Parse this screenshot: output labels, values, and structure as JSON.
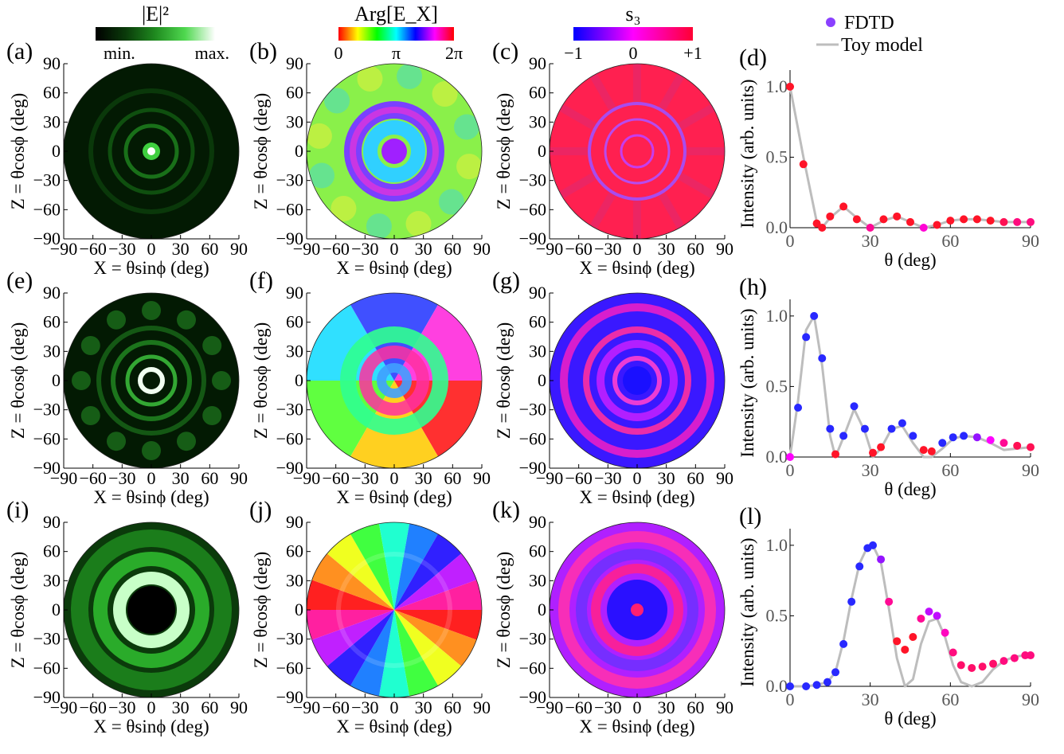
{
  "colorbars": [
    {
      "id": "intensity",
      "title": "|E|²",
      "tick_labels": [
        "min.",
        "max."
      ],
      "colors": [
        "#000000",
        "#0a3a0a",
        "#1f8a1f",
        "#4fd84f",
        "#ffffff"
      ]
    },
    {
      "id": "phase",
      "title": "Arg[E_X]",
      "tick_labels": [
        "0",
        "π",
        "2π"
      ],
      "colors": [
        "#ff0000",
        "#ffff00",
        "#00ff00",
        "#00ffff",
        "#0000ff",
        "#ff00ff",
        "#ff0000"
      ]
    },
    {
      "id": "s3",
      "title": "s₃",
      "tick_labels": [
        "−1",
        "0",
        "+1"
      ],
      "colors": [
        "#0000ff",
        "#ff00ff",
        "#ff0033"
      ]
    }
  ],
  "map_axes": {
    "xlabel": "X = θsinϕ (deg)",
    "ylabel": "Z = θcosϕ (deg)",
    "ticks": [
      -90,
      -60,
      -30,
      0,
      30,
      60,
      90
    ],
    "tick_labels": [
      "−90",
      "−60",
      "−30",
      "0",
      "30",
      "60",
      "90"
    ]
  },
  "panels": [
    {
      "label": "(a)",
      "kind": "intensity"
    },
    {
      "label": "(b)",
      "kind": "phase"
    },
    {
      "label": "(c)",
      "kind": "s3"
    },
    {
      "label": "(e)",
      "kind": "intensity"
    },
    {
      "label": "(f)",
      "kind": "phase"
    },
    {
      "label": "(g)",
      "kind": "s3"
    },
    {
      "label": "(i)",
      "kind": "intensity"
    },
    {
      "label": "(j)",
      "kind": "phase"
    },
    {
      "label": "(k)",
      "kind": "s3"
    }
  ],
  "chart_data": [
    {
      "type": "line",
      "label": "(d)",
      "xlabel": "θ (deg)",
      "ylabel": "Intensity (arb. units)",
      "xlim": [
        0,
        90
      ],
      "ylim": [
        0,
        1.05
      ],
      "xticks": [
        0,
        30,
        60,
        90
      ],
      "yticks": [
        0.0,
        0.5,
        1.0
      ],
      "ytick_labels": [
        "0.0",
        "0.5",
        "1.0"
      ],
      "series": [
        {
          "name": "FDTD",
          "style": "scatter",
          "x": [
            0,
            5,
            10,
            12,
            15,
            20,
            25,
            30,
            35,
            40,
            45,
            50,
            55,
            60,
            65,
            70,
            75,
            80,
            85,
            90
          ],
          "y": [
            1.0,
            0.45,
            0.03,
            0.0,
            0.08,
            0.15,
            0.06,
            0.0,
            0.06,
            0.08,
            0.04,
            0.0,
            0.02,
            0.05,
            0.06,
            0.06,
            0.05,
            0.04,
            0.04,
            0.04
          ],
          "s3": [
            1,
            1,
            1,
            1,
            1,
            1,
            1,
            0.5,
            1,
            1,
            1,
            0.2,
            1,
            1,
            1,
            1,
            1,
            0.8,
            0.6,
            0.6
          ]
        },
        {
          "name": "Toy model",
          "style": "line",
          "x": [
            0,
            5,
            10,
            12,
            15,
            20,
            25,
            30,
            35,
            40,
            45,
            50,
            55,
            60,
            65,
            70,
            75,
            80,
            85,
            90
          ],
          "y": [
            1.0,
            0.5,
            0.04,
            0.0,
            0.07,
            0.15,
            0.07,
            0.0,
            0.05,
            0.08,
            0.04,
            0.0,
            0.02,
            0.05,
            0.06,
            0.06,
            0.05,
            0.04,
            0.04,
            0.04
          ]
        }
      ]
    },
    {
      "type": "line",
      "label": "(h)",
      "xlabel": "θ (deg)",
      "ylabel": "Intensity (arb. units)",
      "xlim": [
        0,
        90
      ],
      "ylim": [
        0,
        1.05
      ],
      "xticks": [
        0,
        30,
        60,
        90
      ],
      "yticks": [
        0.0,
        0.5,
        1.0
      ],
      "ytick_labels": [
        "0.0",
        "0.5",
        "1.0"
      ],
      "series": [
        {
          "name": "FDTD",
          "style": "scatter",
          "x": [
            0,
            3,
            6,
            9,
            12,
            15,
            17,
            20,
            24,
            28,
            31,
            34,
            38,
            42,
            46,
            50,
            53,
            57,
            61,
            65,
            70,
            75,
            80,
            85,
            90
          ],
          "y": [
            0.0,
            0.35,
            0.85,
            1.0,
            0.7,
            0.2,
            0.02,
            0.15,
            0.36,
            0.2,
            0.03,
            0.07,
            0.2,
            0.24,
            0.15,
            0.05,
            0.04,
            0.1,
            0.14,
            0.15,
            0.14,
            0.12,
            0.1,
            0.08,
            0.07
          ],
          "s3": [
            0,
            -1,
            -1,
            -1,
            -1,
            -1,
            1,
            -1,
            -1,
            -1,
            1,
            1,
            -1,
            -1,
            -1,
            1,
            1,
            -1,
            -1,
            -1,
            -0.5,
            0,
            0.5,
            0.8,
            0.8
          ]
        },
        {
          "name": "Toy model",
          "style": "line",
          "x": [
            0,
            3,
            6,
            9,
            12,
            15,
            17,
            20,
            24,
            28,
            31,
            34,
            38,
            42,
            46,
            50,
            53,
            57,
            61,
            65,
            70,
            75,
            80,
            85,
            90
          ],
          "y": [
            0.0,
            0.4,
            0.9,
            1.0,
            0.65,
            0.15,
            0.0,
            0.14,
            0.34,
            0.18,
            0.0,
            0.06,
            0.2,
            0.22,
            0.1,
            0.0,
            0.0,
            0.06,
            0.13,
            0.15,
            0.14,
            0.1,
            0.05,
            0.06,
            0.07
          ]
        }
      ]
    },
    {
      "type": "line",
      "label": "(l)",
      "xlabel": "θ (deg)",
      "ylabel": "Intensity (arb. units)",
      "xlim": [
        0,
        90
      ],
      "ylim": [
        0,
        1.05
      ],
      "xticks": [
        0,
        30,
        60,
        90
      ],
      "yticks": [
        0.0,
        0.5,
        1.0
      ],
      "ytick_labels": [
        "0.0",
        "0.5",
        "1.0"
      ],
      "series": [
        {
          "name": "FDTD",
          "style": "scatter",
          "x": [
            0,
            6,
            10,
            14,
            17,
            20,
            23,
            26,
            29,
            31,
            34,
            37,
            40,
            43,
            46,
            49,
            52,
            55,
            58,
            61,
            64,
            68,
            72,
            76,
            80,
            84,
            88,
            90
          ],
          "y": [
            0.0,
            0.0,
            0.01,
            0.03,
            0.1,
            0.3,
            0.6,
            0.85,
            0.98,
            1.0,
            0.9,
            0.6,
            0.32,
            0.26,
            0.35,
            0.48,
            0.53,
            0.5,
            0.38,
            0.24,
            0.15,
            0.13,
            0.14,
            0.16,
            0.18,
            0.2,
            0.22,
            0.22
          ],
          "s3": [
            -1,
            -1,
            -1,
            -1,
            -1,
            -1,
            -1,
            -1,
            -1,
            -1,
            -0.5,
            0.5,
            1,
            1,
            1,
            0.5,
            -0.3,
            -0.3,
            0.3,
            0.6,
            0.7,
            0.7,
            0.7,
            0.7,
            0.6,
            0.6,
            0.6,
            0.6
          ]
        },
        {
          "name": "Toy model",
          "style": "line",
          "x": [
            0,
            6,
            10,
            14,
            17,
            20,
            23,
            26,
            29,
            31,
            34,
            37,
            40,
            43,
            46,
            49,
            52,
            55,
            58,
            61,
            64,
            68,
            72,
            76,
            80,
            84,
            88,
            90
          ],
          "y": [
            0.0,
            0.0,
            0.01,
            0.03,
            0.1,
            0.32,
            0.62,
            0.87,
            0.99,
            1.0,
            0.88,
            0.55,
            0.2,
            0.0,
            0.05,
            0.3,
            0.46,
            0.48,
            0.35,
            0.15,
            0.03,
            0.0,
            0.03,
            0.12,
            0.18,
            0.21,
            0.22,
            0.22
          ]
        }
      ]
    }
  ],
  "legend": {
    "fdtd": "FDTD",
    "toy": "Toy model"
  }
}
